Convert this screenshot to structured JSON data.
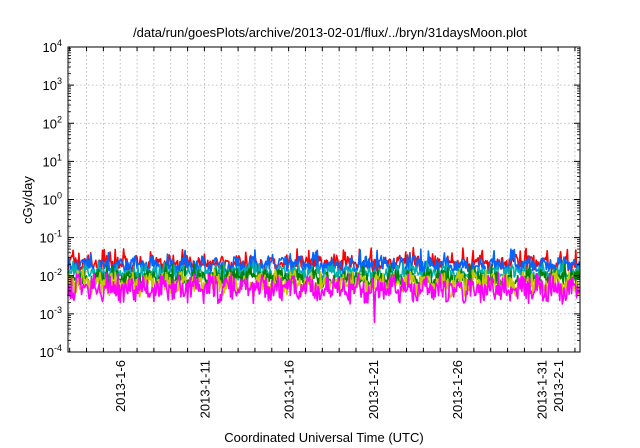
{
  "chart_data": {
    "type": "line",
    "title": "/data/run/goesPlots/archive/2013-02-01/flux/../bryn/31daysMoon.plot",
    "xlabel": "Coordinated Universal Time (UTC)",
    "ylabel": "cGy/day",
    "yscale": "log",
    "ylim": [
      0.0001,
      10000
    ],
    "y_ticks": [
      {
        "value": 0.0001,
        "base": "10",
        "exp": "-4"
      },
      {
        "value": 0.001,
        "base": "10",
        "exp": "-3"
      },
      {
        "value": 0.01,
        "base": "10",
        "exp": "-2"
      },
      {
        "value": 0.1,
        "base": "10",
        "exp": "-1"
      },
      {
        "value": 1,
        "base": "10",
        "exp": "0"
      },
      {
        "value": 10,
        "base": "10",
        "exp": "1"
      },
      {
        "value": 100,
        "base": "10",
        "exp": "2"
      },
      {
        "value": 1000,
        "base": "10",
        "exp": "3"
      },
      {
        "value": 10000,
        "base": "10",
        "exp": "4"
      }
    ],
    "x_ticks": [
      "2013-1-6",
      "2013-1-11",
      "2013-1-16",
      "2013-1-21",
      "2013-1-26",
      "2013-1-31",
      "2013-2-1"
    ],
    "x_tick_days": [
      5,
      10,
      15,
      20,
      25,
      30,
      31
    ],
    "xlim_days": [
      1.9,
      32.3
    ],
    "grid": true,
    "series": [
      {
        "color": "#ff0000",
        "base": 0.021,
        "spread": 0.18,
        "spikes": 0.055
      },
      {
        "color": "#0066ff",
        "base": 0.019,
        "spread": 0.18,
        "spikes": 0.05
      },
      {
        "color": "#00b0b0",
        "base": 0.012,
        "spread": 0.16,
        "spikes": 0.025
      },
      {
        "color": "#008000",
        "base": 0.0085,
        "spread": 0.2,
        "spikes": 0.02
      },
      {
        "color": "#c8c800",
        "base": 0.006,
        "spread": 0.25,
        "spikes": 0.015
      },
      {
        "color": "#ff00ff",
        "base": 0.0045,
        "spread": 0.28,
        "spikes": 0.012,
        "dip_day": 20.1,
        "dip_value": 0.0006
      }
    ]
  }
}
